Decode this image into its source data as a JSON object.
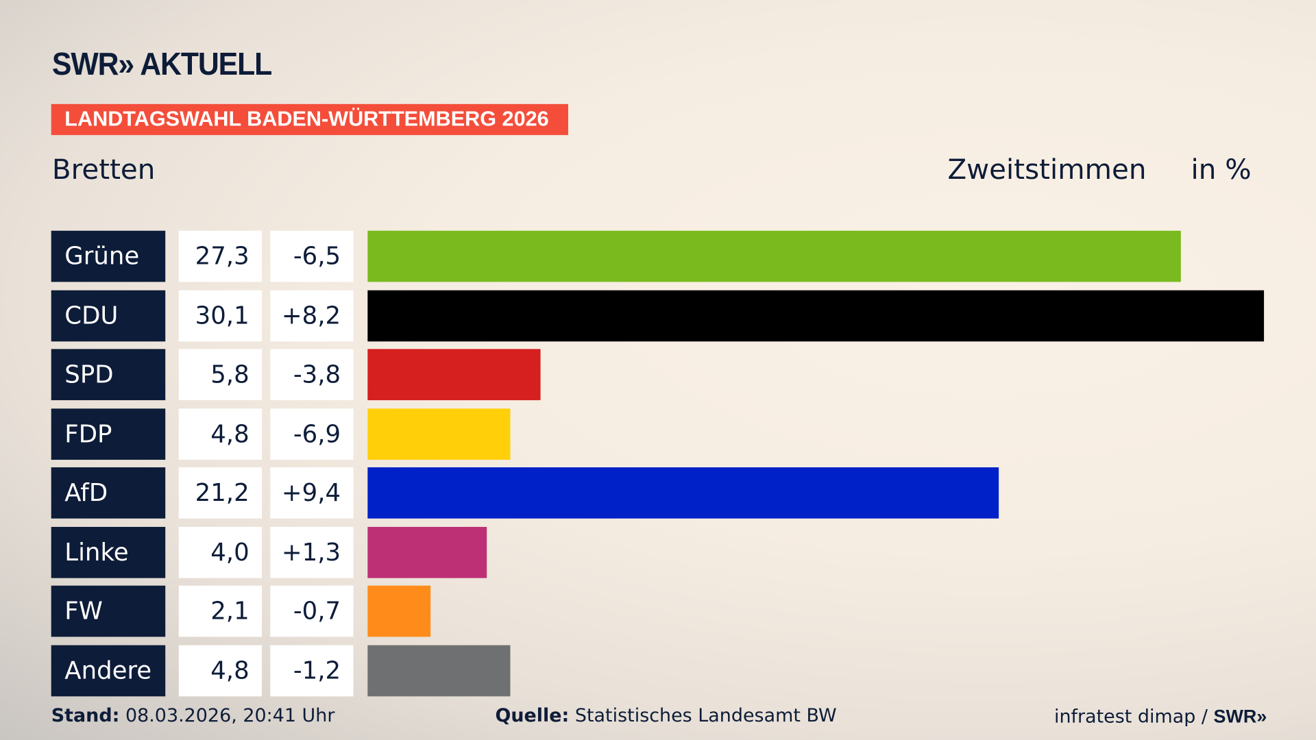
{
  "header": {
    "logo": "SWR» AKTUELL",
    "banner": "LANDTAGSWAHL BADEN-WÜRTTEMBERG 2026",
    "place": "Bretten",
    "metric": "Zweitstimmen",
    "unit": "in %"
  },
  "chart_data": {
    "type": "bar",
    "orientation": "horizontal",
    "categories": [
      "Grüne",
      "CDU",
      "SPD",
      "FDP",
      "AfD",
      "Linke",
      "FW",
      "Andere"
    ],
    "values": [
      27.3,
      30.1,
      5.8,
      4.8,
      21.2,
      4.0,
      2.1,
      4.8
    ],
    "value_labels": [
      "27,3",
      "30,1",
      "5,8",
      "4,8",
      "21,2",
      "4,0",
      "2,1",
      "4,8"
    ],
    "changes": [
      -6.5,
      8.2,
      -3.8,
      -6.9,
      9.4,
      1.3,
      -0.7,
      -1.2
    ],
    "change_labels": [
      "-6,5",
      "+8,2",
      "-3,8",
      "-6,9",
      "+9,4",
      "+1,3",
      "-0,7",
      "-1,2"
    ],
    "colors": [
      "#7aba1e",
      "#000000",
      "#d61f1f",
      "#ffcf0a",
      "#0021c8",
      "#be3075",
      "#ff8c1a",
      "#6f7071"
    ],
    "xlim": [
      0,
      30.1
    ]
  },
  "footer": {
    "stand_label": "Stand:",
    "stand": "08.03.2026, 20:41 Uhr",
    "quelle_label": "Quelle:",
    "quelle": "Statistisches Landesamt BW",
    "credit": "infratest dimap /",
    "credit_logo": "SWR»"
  }
}
